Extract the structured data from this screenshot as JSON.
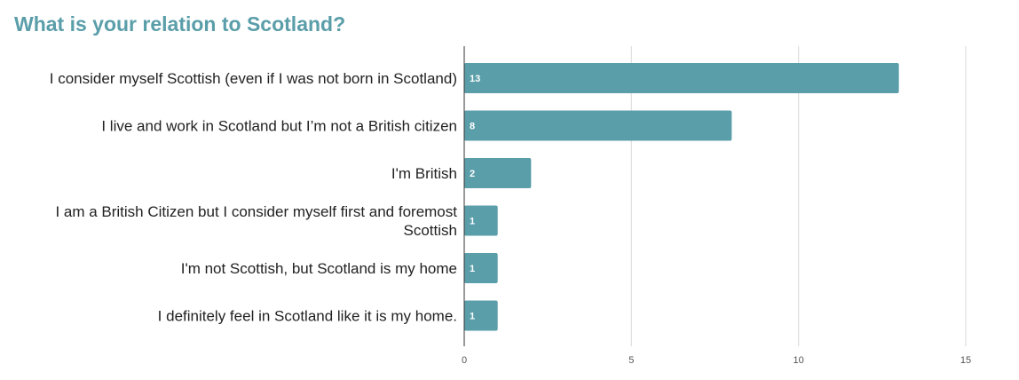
{
  "chart_data": {
    "type": "bar",
    "orientation": "horizontal",
    "title": "What is your relation to Scotland?",
    "categories": [
      [
        "I consider myself Scottish (even if I was not born in Scotland)"
      ],
      [
        "I live and work in Scotland but I’m not a British citizen"
      ],
      [
        "I'm British"
      ],
      [
        "I am a British Citizen but I consider myself first and foremost",
        "Scottish"
      ],
      [
        "I'm not Scottish, but Scotland is my home"
      ],
      [
        "I definitely feel in Scotland like it is my home."
      ]
    ],
    "values": [
      13,
      8,
      2,
      1,
      1,
      1
    ],
    "xlim": [
      0,
      15
    ],
    "ticks": [
      0,
      5,
      10,
      15
    ],
    "grid": true,
    "bar_color": "#5a9ea9",
    "title_color": "#5a9ea9"
  }
}
